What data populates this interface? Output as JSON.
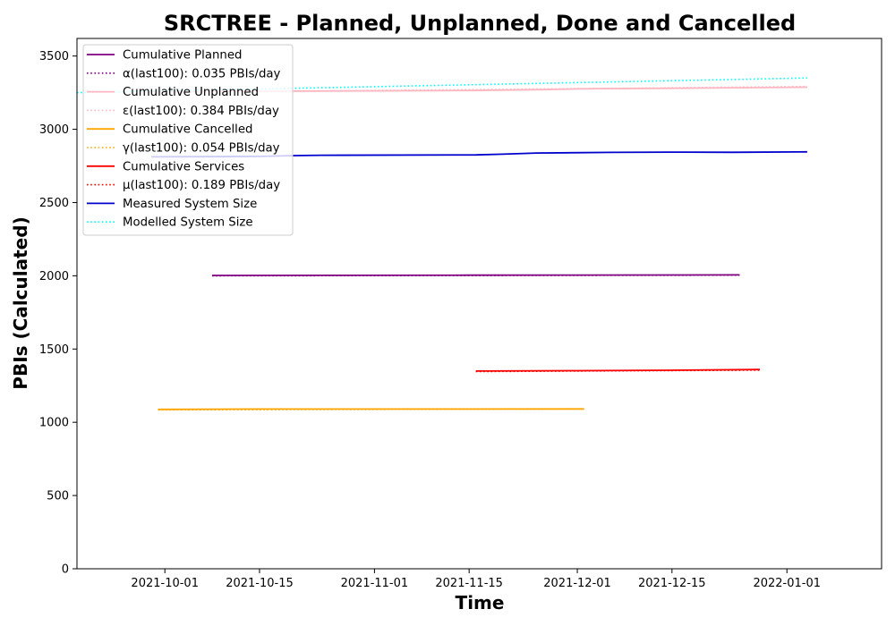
{
  "chart_data": {
    "type": "line",
    "title": "SRCTREE - Planned, Unplanned, Done  and Cancelled",
    "xlabel": "Time",
    "ylabel": "PBIs (Calculated)",
    "xlim": [
      "2021-09-18",
      "2022-01-15"
    ],
    "ylim": [
      0,
      3620
    ],
    "x_ticks": [
      "2021-10-01",
      "2021-10-15",
      "2021-11-01",
      "2021-11-15",
      "2021-12-01",
      "2021-12-15",
      "2022-01-01"
    ],
    "y_ticks": [
      0,
      500,
      1000,
      1500,
      2000,
      2500,
      3000,
      3500
    ],
    "legend_position": "top-left",
    "grid": false,
    "series": [
      {
        "name": "Cumulative Planned",
        "color": "#800080",
        "style": "solid",
        "x": [
          "2021-10-08",
          "2021-11-15",
          "2021-12-25"
        ],
        "values": [
          2002,
          2004,
          2006
        ]
      },
      {
        "name": "α(last100): 0.035 PBIs/day",
        "color": "#800080",
        "style": "dotted",
        "x": [
          "2021-10-08",
          "2021-12-25"
        ],
        "values": [
          2000,
          2004
        ]
      },
      {
        "name": "Cumulative Unplanned",
        "color": "#ffb6c1",
        "style": "solid",
        "x": [
          "2021-09-27",
          "2021-10-15",
          "2021-11-01",
          "2021-11-15",
          "2021-11-26",
          "2021-12-01",
          "2021-12-15",
          "2022-01-04"
        ],
        "values": [
          3258,
          3260,
          3262,
          3265,
          3271,
          3276,
          3280,
          3287
        ]
      },
      {
        "name": "ε(last100): 0.384 PBIs/day",
        "color": "#ffb6c1",
        "style": "dotted",
        "x": [
          "2021-09-27",
          "2022-01-04"
        ],
        "values": [
          3250,
          3292
        ]
      },
      {
        "name": "Cumulative Cancelled",
        "color": "#ffa500",
        "style": "solid",
        "x": [
          "2021-09-30",
          "2021-10-15",
          "2021-11-15",
          "2021-12-02"
        ],
        "values": [
          1088,
          1090,
          1090,
          1091
        ]
      },
      {
        "name": "γ(last100): 0.054 PBIs/day",
        "color": "#ffa500",
        "style": "dotted",
        "x": [
          "2021-09-30",
          "2021-12-02"
        ],
        "values": [
          1085,
          1091
        ]
      },
      {
        "name": "Cumulative Services",
        "color": "#ff0000",
        "style": "solid",
        "x": [
          "2021-11-16",
          "2021-12-01",
          "2021-12-15",
          "2021-12-28"
        ],
        "values": [
          1350,
          1352,
          1355,
          1360
        ]
      },
      {
        "name": "μ(last100): 0.189 PBIs/day",
        "color": "#ff0000",
        "style": "dotted",
        "x": [
          "2021-11-16",
          "2021-12-28"
        ],
        "values": [
          1346,
          1356
        ]
      },
      {
        "name": "Measured System Size",
        "color": "#0000cd",
        "style": "solid",
        "x": [
          "2021-09-29",
          "2021-10-15",
          "2021-10-20",
          "2021-10-24",
          "2021-11-16",
          "2021-11-20",
          "2021-11-25",
          "2021-12-06",
          "2021-12-15",
          "2021-12-24",
          "2022-01-04"
        ],
        "values": [
          2812,
          2815,
          2820,
          2823,
          2825,
          2830,
          2838,
          2842,
          2844,
          2843,
          2846
        ]
      },
      {
        "name": "Modelled System Size",
        "color": "#00ffff",
        "style": "dotted",
        "x": [
          "2021-09-18",
          "2022-01-04"
        ],
        "values": [
          3250,
          3350
        ]
      }
    ]
  }
}
